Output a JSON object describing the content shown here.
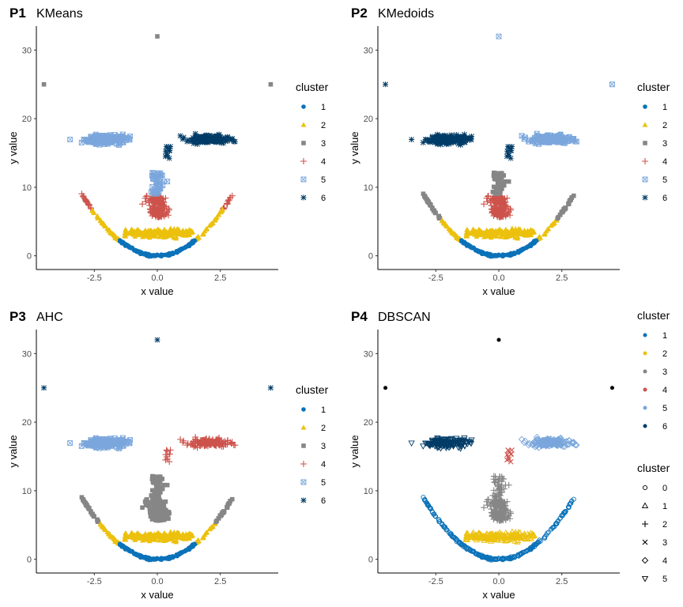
{
  "colors": {
    "1": "#0b72b9",
    "2": "#ecc10d",
    "3": "#868686",
    "4": "#cd534c",
    "5": "#7aa6dc",
    "6": "#003c67",
    "dark": "#000000"
  },
  "chart_data": [
    {
      "id": "P1",
      "tag": "P1",
      "title": "KMeans",
      "type": "scatter",
      "xlabel": "x value",
      "ylabel": "y value",
      "xlim": [
        -4.8,
        4.8
      ],
      "ylim": [
        -2,
        33.5
      ],
      "xticks": [
        "-2.5",
        "0.0",
        "2.5"
      ],
      "yticks": [
        "0",
        "10",
        "20",
        "30"
      ],
      "legend": {
        "title": "cluster",
        "entries": [
          "1",
          "2",
          "3",
          "4",
          "5",
          "6"
        ]
      },
      "clusters": {
        "mouth": 1,
        "upper": 2,
        "sides": 4,
        "nose_low": 4,
        "nose_up": 5,
        "nose_top": 6,
        "left_eye": 5,
        "right_eye": 6,
        "outliers": 3
      }
    },
    {
      "id": "P2",
      "tag": "P2",
      "title": "KMedoids",
      "type": "scatter",
      "xlabel": "x value",
      "ylabel": "y value",
      "xlim": [
        -4.8,
        4.8
      ],
      "ylim": [
        -2,
        33.5
      ],
      "xticks": [
        "-2.5",
        "0.0",
        "2.5"
      ],
      "yticks": [
        "0",
        "10",
        "20",
        "30"
      ],
      "legend": {
        "title": "cluster",
        "entries": [
          "1",
          "2",
          "3",
          "4",
          "5",
          "6"
        ]
      },
      "clusters": {
        "mouth": 1,
        "upper": 2,
        "sides": 3,
        "nose_low": 4,
        "nose_up": 3,
        "nose_top": 6,
        "left_eye": 6,
        "right_eye": 5,
        "outliers": "mixed"
      }
    },
    {
      "id": "P3",
      "tag": "P3",
      "title": "AHC",
      "type": "scatter",
      "xlabel": "x value",
      "ylabel": "y value",
      "xlim": [
        -4.8,
        4.8
      ],
      "ylim": [
        -2,
        33.5
      ],
      "xticks": [
        "-2.5",
        "0.0",
        "2.5"
      ],
      "yticks": [
        "0",
        "10",
        "20",
        "30"
      ],
      "legend": {
        "title": "cluster",
        "entries": [
          "1",
          "2",
          "3",
          "4",
          "5",
          "6"
        ]
      },
      "clusters": {
        "mouth": 1,
        "upper": 2,
        "sides": 3,
        "nose_low": 3,
        "nose_up": 3,
        "nose_top": 4,
        "left_eye": 5,
        "right_eye": 4,
        "outliers": 6
      }
    },
    {
      "id": "P4",
      "tag": "P4",
      "title": "DBSCAN",
      "type": "scatter",
      "xlabel": "x value",
      "ylabel": "y value",
      "xlim": [
        -4.8,
        4.8
      ],
      "ylim": [
        -2,
        33.5
      ],
      "xticks": [
        "-2.5",
        "0.0",
        "2.5"
      ],
      "yticks": [
        "0",
        "10",
        "20",
        "30"
      ],
      "legend": {
        "title": "cluster",
        "entries": [
          "1",
          "2",
          "3",
          "4",
          "5",
          "6"
        ]
      },
      "legend2": {
        "title": "cluster",
        "entries": [
          "0",
          "1",
          "2",
          "3",
          "4",
          "5"
        ]
      },
      "clusters": {
        "mouth": 1,
        "upper": 2,
        "sides": 1,
        "nose_low": 3,
        "nose_up": 3,
        "nose_top": 4,
        "left_eye": 6,
        "right_eye": 5,
        "outliers": "dark"
      }
    }
  ]
}
